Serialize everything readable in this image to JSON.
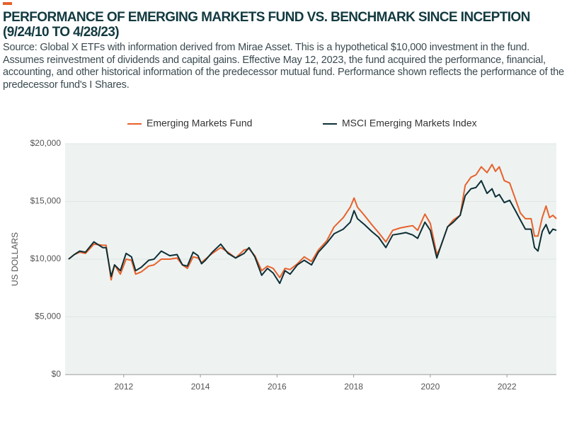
{
  "chart_data": {
    "type": "line",
    "title": "PERFORMANCE OF EMERGING MARKETS FUND VS. BENCHMARK SINCE INCEPTION (9/24/10 TO 4/28/23)",
    "subtitle": "Source: Global X ETFs with information derived from Mirae Asset. This is a hypothetical $10,000 investment in the fund. Assumes reinvestment of dividends and capital gains. Effective May 12, 2023, the fund acquired the performance, financial, accounting, and other historical information of the predecessor mutual fund. Performance shown reflects the performance of the predecessor fund's I Shares.",
    "y_label": "US DOLLARS",
    "x": [
      2010.56,
      2010.71,
      2010.85,
      2011.0,
      2011.22,
      2011.45,
      2011.54,
      2011.67,
      2011.76,
      2011.91,
      2012.06,
      2012.2,
      2012.31,
      2012.46,
      2012.65,
      2012.79,
      2012.98,
      2013.2,
      2013.39,
      2013.53,
      2013.66,
      2013.81,
      2013.94,
      2014.03,
      2014.13,
      2014.31,
      2014.53,
      2014.72,
      2014.92,
      2015.14,
      2015.27,
      2015.42,
      2015.6,
      2015.75,
      2015.9,
      2016.07,
      2016.21,
      2016.34,
      2016.53,
      2016.71,
      2016.9,
      2017.08,
      2017.3,
      2017.49,
      2017.73,
      2017.91,
      2018.01,
      2018.1,
      2018.28,
      2018.47,
      2018.65,
      2018.84,
      2019.02,
      2019.21,
      2019.36,
      2019.54,
      2019.67,
      2019.86,
      2020.0,
      2020.17,
      2020.26,
      2020.45,
      2020.6,
      2020.78,
      2020.91,
      2021.06,
      2021.19,
      2021.33,
      2021.48,
      2021.61,
      2021.7,
      2021.8,
      2021.93,
      2022.07,
      2022.22,
      2022.35,
      2022.48,
      2022.63,
      2022.72,
      2022.81,
      2022.92,
      2023.02,
      2023.11,
      2023.2,
      2023.29
    ],
    "series": [
      {
        "name": "Emerging Markets Fund",
        "color": "#e8612c",
        "values": [
          10000,
          10400,
          10600,
          10500,
          11300,
          11200,
          11200,
          8200,
          9500,
          8700,
          10000,
          9900,
          8700,
          8900,
          9400,
          9500,
          10000,
          10000,
          10100,
          9500,
          9200,
          10200,
          10100,
          9700,
          10000,
          10500,
          11000,
          10600,
          10100,
          10800,
          10900,
          10300,
          9000,
          9400,
          9200,
          8400,
          9200,
          9100,
          9600,
          10200,
          9800,
          10800,
          11600,
          12800,
          13600,
          14500,
          15300,
          14500,
          13800,
          13000,
          12300,
          11500,
          12500,
          12700,
          12800,
          12900,
          12500,
          13900,
          13100,
          10400,
          11000,
          12800,
          13400,
          13800,
          16400,
          17100,
          17300,
          18000,
          17500,
          18200,
          17600,
          18000,
          16800,
          16600,
          15200,
          14000,
          13500,
          13500,
          12000,
          12000,
          13600,
          14600,
          13600,
          13800,
          13500
        ]
      },
      {
        "name": "MSCI Emerging Markets Index",
        "color": "#0d2f36",
        "values": [
          10000,
          10400,
          10700,
          10600,
          11500,
          11000,
          11000,
          8500,
          9500,
          9000,
          10500,
          10200,
          9000,
          9300,
          9900,
          10000,
          10700,
          10300,
          10400,
          9500,
          9400,
          10600,
          10300,
          9600,
          9900,
          10600,
          11300,
          10500,
          10100,
          10500,
          11000,
          10200,
          8600,
          9200,
          8800,
          7900,
          9000,
          8700,
          9500,
          9900,
          9500,
          10600,
          11400,
          12200,
          12600,
          13200,
          14200,
          13500,
          13000,
          12400,
          11900,
          11000,
          12100,
          12200,
          12300,
          12100,
          11800,
          13200,
          12500,
          10100,
          11000,
          12800,
          13200,
          13800,
          15500,
          16100,
          16200,
          16800,
          15700,
          16100,
          15400,
          15600,
          14900,
          15100,
          14200,
          13400,
          12600,
          12600,
          11000,
          10700,
          12400,
          13000,
          12200,
          12600,
          12500
        ]
      }
    ],
    "xlim": [
      2010.47,
      2023.29
    ],
    "xticks": [
      2012,
      2014,
      2016,
      2018,
      2020,
      2022
    ],
    "ylim": [
      0,
      20000
    ],
    "yticks": [
      {
        "value": 0,
        "label": "$0"
      },
      {
        "value": 5000,
        "label": "$5,000"
      },
      {
        "value": 10000,
        "label": "$10,000"
      },
      {
        "value": 15000,
        "label": "$15,000"
      },
      {
        "value": 20000,
        "label": "$20,000"
      }
    ],
    "grid": true,
    "legend": "top"
  }
}
